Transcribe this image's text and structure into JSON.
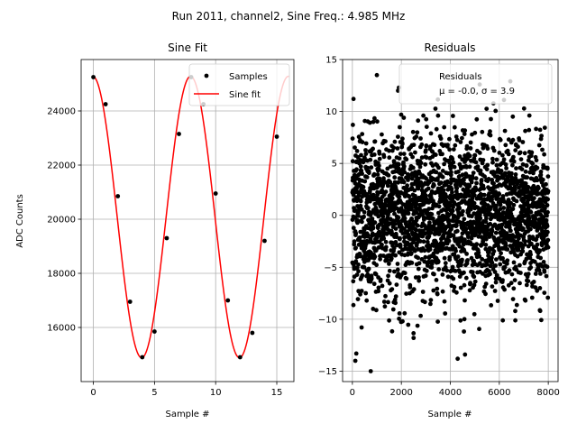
{
  "figure": {
    "suptitle": "Run 2011, channel2, Sine Freq.: 4.985 MHz"
  },
  "chart_data": [
    {
      "type": "scatter+line",
      "title": "Sine Fit",
      "xlabel": "Sample #",
      "ylabel": "ADC Counts",
      "xlim": [
        -1,
        16.4
      ],
      "ylim": [
        14000,
        25900
      ],
      "xticks": [
        0,
        5,
        10,
        15
      ],
      "yticks": [
        16000,
        18000,
        20000,
        22000,
        24000
      ],
      "grid": true,
      "legend": "top-right",
      "series": [
        {
          "name": "Samples",
          "kind": "scatter",
          "color": "#000000",
          "x": [
            0,
            1,
            2,
            3,
            4,
            5,
            6,
            7,
            8,
            9,
            10,
            11,
            12,
            13,
            14,
            15
          ],
          "y": [
            25250,
            24250,
            20850,
            16950,
            14900,
            15850,
            19300,
            23150,
            25250,
            24250,
            20950,
            17000,
            14900,
            15800,
            19200,
            23050
          ]
        },
        {
          "name": "Sine fit",
          "kind": "line",
          "color": "#ff0000",
          "model": {
            "offset": 20080,
            "amplitude": 5200,
            "period": 8.0,
            "phase": 1.61
          },
          "xrange": [
            0,
            16
          ]
        }
      ]
    },
    {
      "type": "scatter",
      "title": "Residuals",
      "xlabel": "Sample #",
      "ylabel": "",
      "xlim": [
        -400,
        8400
      ],
      "ylim": [
        -16,
        15
      ],
      "xticks": [
        0,
        2000,
        4000,
        6000,
        8000
      ],
      "yticks": [
        -15,
        -10,
        -5,
        0,
        5,
        10,
        15
      ],
      "grid": true,
      "legend": "top-right",
      "series": [
        {
          "name": "Residuals",
          "color": "#000000",
          "n_points": 8000,
          "mean": 0.0,
          "std": 3.9,
          "outliers": [
            {
              "x": 120,
              "y": -14.0
            },
            {
              "x": 160,
              "y": -13.3
            },
            {
              "x": 750,
              "y": -15.0
            },
            {
              "x": 4300,
              "y": -13.8
            },
            {
              "x": 4600,
              "y": -13.4
            },
            {
              "x": 1000,
              "y": 13.5
            },
            {
              "x": 6450,
              "y": 12.9
            },
            {
              "x": 1900,
              "y": 12.3
            },
            {
              "x": 2500,
              "y": -11.8
            },
            {
              "x": 5200,
              "y": 12.6
            }
          ]
        }
      ],
      "legend_lines": [
        "Residuals",
        "μ = -0.0, σ = 3.9"
      ]
    }
  ]
}
